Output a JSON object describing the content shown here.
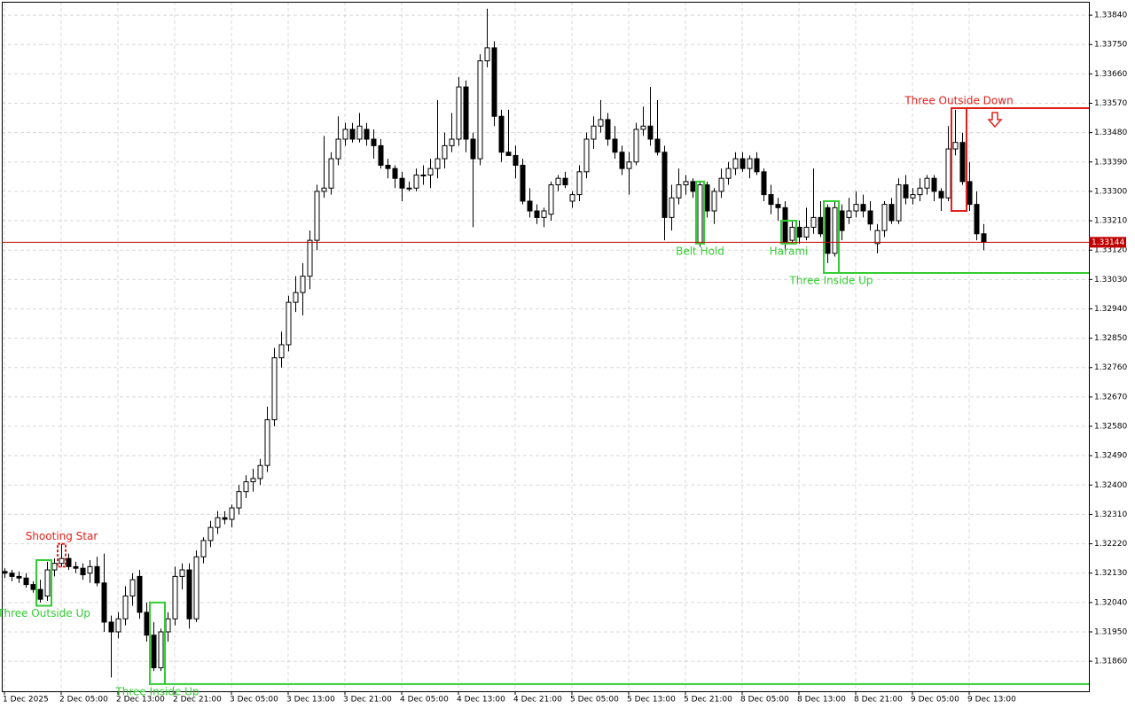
{
  "chart_data": {
    "type": "candlestick",
    "ylim": [
      1.31768,
      1.33881
    ],
    "yticks": [
      {
        "value": 1.3384,
        "label": "1.33840"
      },
      {
        "value": 1.3375,
        "label": "1.33750"
      },
      {
        "value": 1.3366,
        "label": "1.33660"
      },
      {
        "value": 1.3357,
        "label": "1.33570"
      },
      {
        "value": 1.3348,
        "label": "1.33480"
      },
      {
        "value": 1.3339,
        "label": "1.33390"
      },
      {
        "value": 1.333,
        "label": "1.33300"
      },
      {
        "value": 1.3321,
        "label": "1.33210"
      },
      {
        "value": 1.3312,
        "label": "1.33120"
      },
      {
        "value": 1.3303,
        "label": "1.33030"
      },
      {
        "value": 1.3294,
        "label": "1.32940"
      },
      {
        "value": 1.3285,
        "label": "1.32850"
      },
      {
        "value": 1.3276,
        "label": "1.32760"
      },
      {
        "value": 1.3267,
        "label": "1.32670"
      },
      {
        "value": 1.3258,
        "label": "1.32580"
      },
      {
        "value": 1.3249,
        "label": "1.32490"
      },
      {
        "value": 1.324,
        "label": "1.32400"
      },
      {
        "value": 1.3231,
        "label": "1.32310"
      },
      {
        "value": 1.3222,
        "label": "1.32220"
      },
      {
        "value": 1.3213,
        "label": "1.32130"
      },
      {
        "value": 1.3204,
        "label": "1.32040"
      },
      {
        "value": 1.3195,
        "label": "1.31950"
      },
      {
        "value": 1.3186,
        "label": "1.31860"
      }
    ],
    "xticks": [
      {
        "value": 0,
        "label": "1 Dec 2025"
      },
      {
        "value": 8,
        "label": "2 Dec 05:00"
      },
      {
        "value": 16,
        "label": "2 Dec 13:00"
      },
      {
        "value": 24,
        "label": "2 Dec 21:00"
      },
      {
        "value": 32,
        "label": "3 Dec 05:00"
      },
      {
        "value": 40,
        "label": "3 Dec 13:00"
      },
      {
        "value": 48,
        "label": "3 Dec 21:00"
      },
      {
        "value": 56,
        "label": "4 Dec 05:00"
      },
      {
        "value": 64,
        "label": "4 Dec 13:00"
      },
      {
        "value": 72,
        "label": "4 Dec 21:00"
      },
      {
        "value": 80,
        "label": "5 Dec 05:00"
      },
      {
        "value": 88,
        "label": "5 Dec 13:00"
      },
      {
        "value": 96,
        "label": "5 Dec 21:00"
      },
      {
        "value": 104,
        "label": "8 Dec 05:00"
      },
      {
        "value": 112,
        "label": "8 Dec 13:00"
      },
      {
        "value": 120,
        "label": "8 Dec 21:00"
      },
      {
        "value": 128,
        "label": "9 Dec 05:00"
      },
      {
        "value": 136,
        "label": "9 Dec 13:00"
      }
    ],
    "grid": true,
    "up_color": "#ffffff",
    "down_color": "#000000",
    "open": [
      1.32135,
      1.3213,
      1.3212,
      1.32115,
      1.32095,
      1.3208,
      1.3206,
      1.3214,
      1.3216,
      1.32175,
      1.3215,
      1.32145,
      1.3213,
      1.3215,
      1.321,
      1.3198,
      1.3195,
      1.3199,
      1.3206,
      1.3212,
      1.3201,
      1.3194,
      1.3184,
      1.3195,
      1.3199,
      1.3212,
      1.3214,
      1.3199,
      1.3218,
      1.3223,
      1.3227,
      1.323,
      1.32295,
      1.3233,
      1.3238,
      1.3241,
      1.3242,
      1.3246,
      1.326,
      1.3279,
      1.3283,
      1.3296,
      1.3299,
      1.3304,
      1.3315,
      1.333,
      1.3331,
      1.334,
      1.3346,
      1.3349,
      1.3346,
      1.3349,
      1.3346,
      1.3344,
      1.3338,
      1.3337,
      1.3334,
      1.3331,
      1.3331,
      1.3335,
      1.3335,
      1.3337,
      1.334,
      1.3344,
      1.3346,
      1.3362,
      1.3346,
      1.334,
      1.337,
      1.3374,
      1.3353,
      1.3342,
      1.3341,
      1.3338,
      1.3327,
      1.3324,
      1.3322,
      1.3323,
      1.3332,
      1.3334,
      1.3327,
      1.3329,
      1.3336,
      1.3346,
      1.335,
      1.3352,
      1.3346,
      1.3342,
      1.3337,
      1.3339,
      1.3349,
      1.335,
      1.3346,
      1.3342,
      1.3322,
      1.3328,
      1.3332,
      1.3333,
      1.3314,
      1.3332,
      1.3324,
      1.333,
      1.3334,
      1.3337,
      1.334,
      1.3337,
      1.334,
      1.3336,
      1.3329,
      1.3326,
      1.3325,
      1.3315,
      1.3319,
      1.3316,
      1.3319,
      1.3322,
      1.3325,
      1.3311,
      1.3324,
      1.3322,
      1.3324,
      1.3326,
      1.3324,
      1.3314,
      1.3318,
      1.3326,
      1.3321,
      1.3332,
      1.3328,
      1.3329,
      1.3331,
      1.3334,
      1.333,
      1.3328,
      1.3343,
      1.3345,
      1.3333,
      1.3326,
      1.3317
    ],
    "high": [
      1.32145,
      1.3214,
      1.32135,
      1.3213,
      1.32105,
      1.3211,
      1.32165,
      1.32175,
      1.3222,
      1.3219,
      1.32165,
      1.3216,
      1.3217,
      1.3218,
      1.3219,
      1.32,
      1.3201,
      1.3209,
      1.3213,
      1.3214,
      1.3204,
      1.3198,
      1.3196,
      1.3201,
      1.3215,
      1.3216,
      1.3216,
      1.322,
      1.3224,
      1.3229,
      1.3232,
      1.3232,
      1.3234,
      1.324,
      1.3243,
      1.3245,
      1.3248,
      1.3264,
      1.3282,
      1.3287,
      1.3298,
      1.3304,
      1.3308,
      1.3318,
      1.3332,
      1.3347,
      1.3342,
      1.3353,
      1.3351,
      1.3351,
      1.3354,
      1.3351,
      1.3349,
      1.3346,
      1.334,
      1.3338,
      1.3336,
      1.3333,
      1.3337,
      1.3338,
      1.334,
      1.3358,
      1.3348,
      1.3354,
      1.3365,
      1.3364,
      1.3348,
      1.3372,
      1.3386,
      1.3376,
      1.3355,
      1.3355,
      1.3344,
      1.334,
      1.3331,
      1.3326,
      1.3325,
      1.3333,
      1.3335,
      1.3336,
      1.333,
      1.3338,
      1.3348,
      1.3353,
      1.3358,
      1.3354,
      1.335,
      1.3344,
      1.3342,
      1.3351,
      1.3356,
      1.3362,
      1.3358,
      1.3344,
      1.3332,
      1.3337,
      1.3335,
      1.3334,
      1.3333,
      1.3333,
      1.3331,
      1.3337,
      1.3339,
      1.3342,
      1.3342,
      1.3341,
      1.3342,
      1.3337,
      1.3332,
      1.3328,
      1.3327,
      1.3321,
      1.3321,
      1.3325,
      1.3337,
      1.3327,
      1.3326,
      1.3327,
      1.3326,
      1.3328,
      1.333,
      1.3329,
      1.3327,
      1.332,
      1.3327,
      1.3328,
      1.3334,
      1.3335,
      1.3331,
      1.3334,
      1.3335,
      1.3335,
      1.3331,
      1.335,
      1.3355,
      1.3348,
      1.3339,
      1.333,
      1.332
    ],
    "low": [
      1.32115,
      1.32105,
      1.321,
      1.32085,
      1.3207,
      1.3204,
      1.32045,
      1.3212,
      1.3215,
      1.3214,
      1.3213,
      1.3211,
      1.321,
      1.3209,
      1.3195,
      1.3181,
      1.3193,
      1.3197,
      1.3203,
      1.3199,
      1.3192,
      1.3183,
      1.3183,
      1.3192,
      1.3197,
      1.3208,
      1.3196,
      1.3198,
      1.3216,
      1.3221,
      1.3225,
      1.3228,
      1.3227,
      1.3231,
      1.3236,
      1.3238,
      1.324,
      1.3244,
      1.3258,
      1.3276,
      1.3281,
      1.3293,
      1.3292,
      1.33,
      1.3312,
      1.3328,
      1.3329,
      1.3338,
      1.3344,
      1.3345,
      1.3345,
      1.3344,
      1.334,
      1.3337,
      1.3334,
      1.3331,
      1.3327,
      1.333,
      1.333,
      1.3332,
      1.3331,
      1.3334,
      1.3337,
      1.3342,
      1.3344,
      1.3342,
      1.3319,
      1.3338,
      1.3368,
      1.335,
      1.3339,
      1.3341,
      1.3334,
      1.3326,
      1.3322,
      1.332,
      1.3319,
      1.3321,
      1.333,
      1.3331,
      1.3325,
      1.3327,
      1.3334,
      1.3343,
      1.3348,
      1.3344,
      1.334,
      1.3335,
      1.3329,
      1.3338,
      1.3347,
      1.3344,
      1.3341,
      1.3315,
      1.3318,
      1.3326,
      1.3329,
      1.3328,
      1.3313,
      1.3322,
      1.332,
      1.3328,
      1.3332,
      1.3335,
      1.3336,
      1.3334,
      1.3335,
      1.3327,
      1.3323,
      1.3321,
      1.3312,
      1.3314,
      1.3314,
      1.3315,
      1.3317,
      1.3316,
      1.3308,
      1.331,
      1.3315,
      1.332,
      1.3322,
      1.3322,
      1.3318,
      1.3311,
      1.3316,
      1.332,
      1.332,
      1.3326,
      1.3326,
      1.3327,
      1.3329,
      1.3327,
      1.3324,
      1.3327,
      1.3341,
      1.3332,
      1.3324,
      1.3315,
      1.3312
    ],
    "close": [
      1.3213,
      1.3212,
      1.32115,
      1.32095,
      1.3208,
      1.3205,
      1.3214,
      1.3216,
      1.32175,
      1.3215,
      1.32145,
      1.32125,
      1.3215,
      1.321,
      1.3198,
      1.3195,
      1.3199,
      1.3206,
      1.3211,
      1.3201,
      1.3194,
      1.3184,
      1.3195,
      1.3199,
      1.3212,
      1.3214,
      1.3199,
      1.3218,
      1.3223,
      1.3227,
      1.323,
      1.32295,
      1.3233,
      1.3238,
      1.3241,
      1.3242,
      1.3246,
      1.326,
      1.3279,
      1.3283,
      1.3296,
      1.3299,
      1.3304,
      1.3315,
      1.333,
      1.3331,
      1.334,
      1.3346,
      1.3349,
      1.3346,
      1.335,
      1.3346,
      1.3344,
      1.3338,
      1.3337,
      1.3334,
      1.3331,
      1.3331,
      1.3335,
      1.3335,
      1.3337,
      1.334,
      1.3344,
      1.3346,
      1.3362,
      1.3346,
      1.334,
      1.337,
      1.3374,
      1.3353,
      1.3342,
      1.3341,
      1.3338,
      1.3327,
      1.3324,
      1.3322,
      1.3324,
      1.3332,
      1.3334,
      1.3332,
      1.3329,
      1.3336,
      1.3346,
      1.335,
      1.3352,
      1.3346,
      1.3342,
      1.3337,
      1.3339,
      1.3349,
      1.335,
      1.3346,
      1.3342,
      1.3322,
      1.3328,
      1.3332,
      1.3333,
      1.333,
      1.3332,
      1.3324,
      1.333,
      1.3334,
      1.3337,
      1.334,
      1.3337,
      1.334,
      1.3336,
      1.3329,
      1.3326,
      1.3325,
      1.3314,
      1.3319,
      1.3316,
      1.3319,
      1.3322,
      1.3317,
      1.3311,
      1.3325,
      1.3318,
      1.3324,
      1.3326,
      1.3324,
      1.332,
      1.3318,
      1.3326,
      1.3321,
      1.3332,
      1.3328,
      1.3329,
      1.3331,
      1.3334,
      1.333,
      1.3328,
      1.3343,
      1.3345,
      1.3333,
      1.3326,
      1.3317,
      1.33144
    ],
    "last_price": 1.33144,
    "last_price_color": "#c00000",
    "patterns": [
      {
        "label": "Three Outside Up",
        "color": "#32cd32",
        "candles": [
          5,
          6
        ],
        "low": 1.3203,
        "high": 1.3217,
        "label_side": "below"
      },
      {
        "label": "Shooting Star",
        "color": "#e0201c",
        "candles": [
          8,
          8
        ],
        "low": 1.3215,
        "high": 1.3222,
        "label_side": "above",
        "dashed": true
      },
      {
        "label": "Three Inside Up",
        "color": "#32cd32",
        "candles": [
          21,
          22
        ],
        "low": 1.3179,
        "high": 1.3204,
        "label_side": "below",
        "level": 1.3179
      },
      {
        "label": "Belt Hold",
        "color": "#32cd32",
        "candles": [
          98,
          98
        ],
        "low": 1.3314,
        "high": 1.3333,
        "label_side": "below"
      },
      {
        "label": "Harami",
        "color": "#32cd32",
        "candles": [
          110,
          111
        ],
        "low": 1.3314,
        "high": 1.3321,
        "label_side": "below"
      },
      {
        "label": "Three Inside Up",
        "color": "#32cd32",
        "candles": [
          116,
          117
        ],
        "low": 1.3305,
        "high": 1.3327,
        "label_side": "below",
        "level": 1.3305
      },
      {
        "label": "Three Outside Down",
        "color": "#e0201c",
        "candles": [
          134,
          135
        ],
        "low": 1.3324,
        "high": 1.33555,
        "label_side": "above",
        "level": 1.33555,
        "arrow": "down"
      }
    ]
  }
}
